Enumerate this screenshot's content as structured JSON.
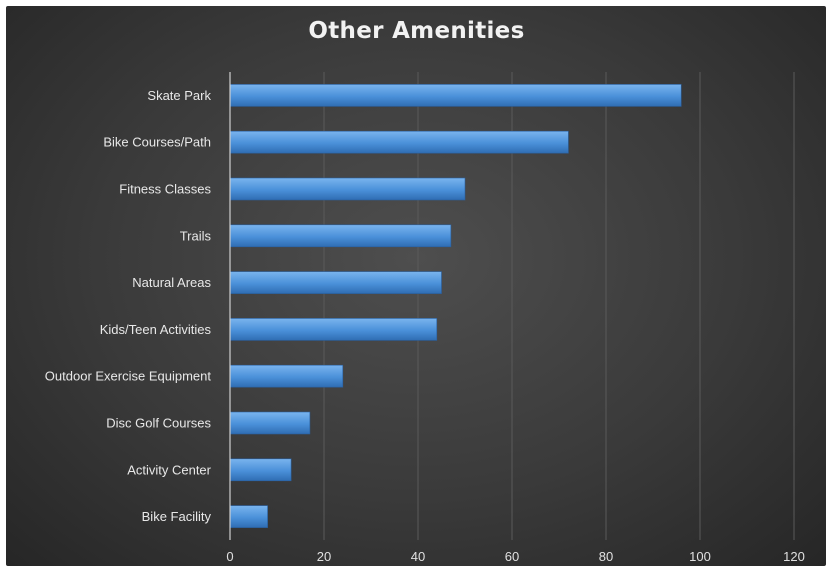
{
  "chart_data": {
    "type": "bar",
    "orientation": "horizontal",
    "title": "Other Amenities",
    "categories": [
      "Skate Park",
      "Bike Courses/Path",
      "Fitness Classes",
      "Trails",
      "Natural Areas",
      "Kids/Teen Activities",
      "Outdoor Exercise Equipment",
      "Disc Golf Courses",
      "Activity Center",
      "Bike Facility"
    ],
    "values": [
      96,
      72,
      50,
      47,
      45,
      44,
      24,
      17,
      13,
      8
    ],
    "xlim": [
      0,
      120
    ],
    "xticks": [
      "0",
      "20",
      "40",
      "60",
      "80",
      "100",
      "120"
    ],
    "xlabel": "",
    "ylabel": "",
    "grid": "vertical",
    "legend": "none",
    "colors": {
      "bar": "#4a90d9",
      "bar_light": "#7ab4ee",
      "bar_dark": "#2f6db3",
      "background": "#3a3a3a"
    }
  }
}
